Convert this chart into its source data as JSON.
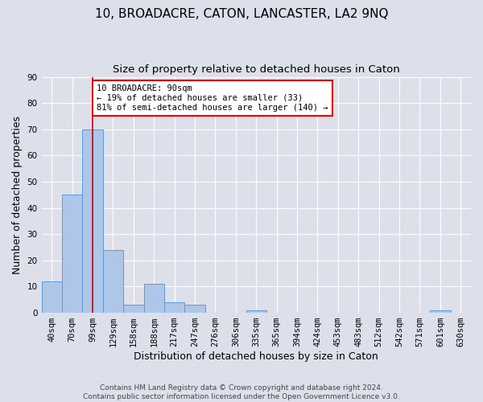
{
  "title": "10, BROADACRE, CATON, LANCASTER, LA2 9NQ",
  "subtitle": "Size of property relative to detached houses in Caton",
  "xlabel": "Distribution of detached houses by size in Caton",
  "ylabel": "Number of detached properties",
  "footer_line1": "Contains HM Land Registry data © Crown copyright and database right 2024.",
  "footer_line2": "Contains public sector information licensed under the Open Government Licence v3.0.",
  "categories": [
    "40sqm",
    "70sqm",
    "99sqm",
    "129sqm",
    "158sqm",
    "188sqm",
    "217sqm",
    "247sqm",
    "276sqm",
    "306sqm",
    "335sqm",
    "365sqm",
    "394sqm",
    "424sqm",
    "453sqm",
    "483sqm",
    "512sqm",
    "542sqm",
    "571sqm",
    "601sqm",
    "630sqm"
  ],
  "values": [
    12,
    45,
    70,
    24,
    3,
    11,
    4,
    3,
    0,
    0,
    1,
    0,
    0,
    0,
    0,
    0,
    0,
    0,
    0,
    1,
    0
  ],
  "bar_color": "#aec6e8",
  "bar_edge_color": "#5b9bd5",
  "vline_x": 2,
  "vline_color": "#cc0000",
  "annotation_text": "10 BROADACRE: 90sqm\n← 19% of detached houses are smaller (33)\n81% of semi-detached houses are larger (140) →",
  "annotation_box_color": "white",
  "annotation_box_edge_color": "red",
  "ylim": [
    0,
    90
  ],
  "yticks": [
    0,
    10,
    20,
    30,
    40,
    50,
    60,
    70,
    80,
    90
  ],
  "background_color": "#dde0ea",
  "plot_bg_color": "#dde0ea",
  "grid_color": "white",
  "title_fontsize": 11,
  "subtitle_fontsize": 9.5,
  "xlabel_fontsize": 9,
  "ylabel_fontsize": 9,
  "tick_fontsize": 7.5,
  "footer_fontsize": 6.5
}
